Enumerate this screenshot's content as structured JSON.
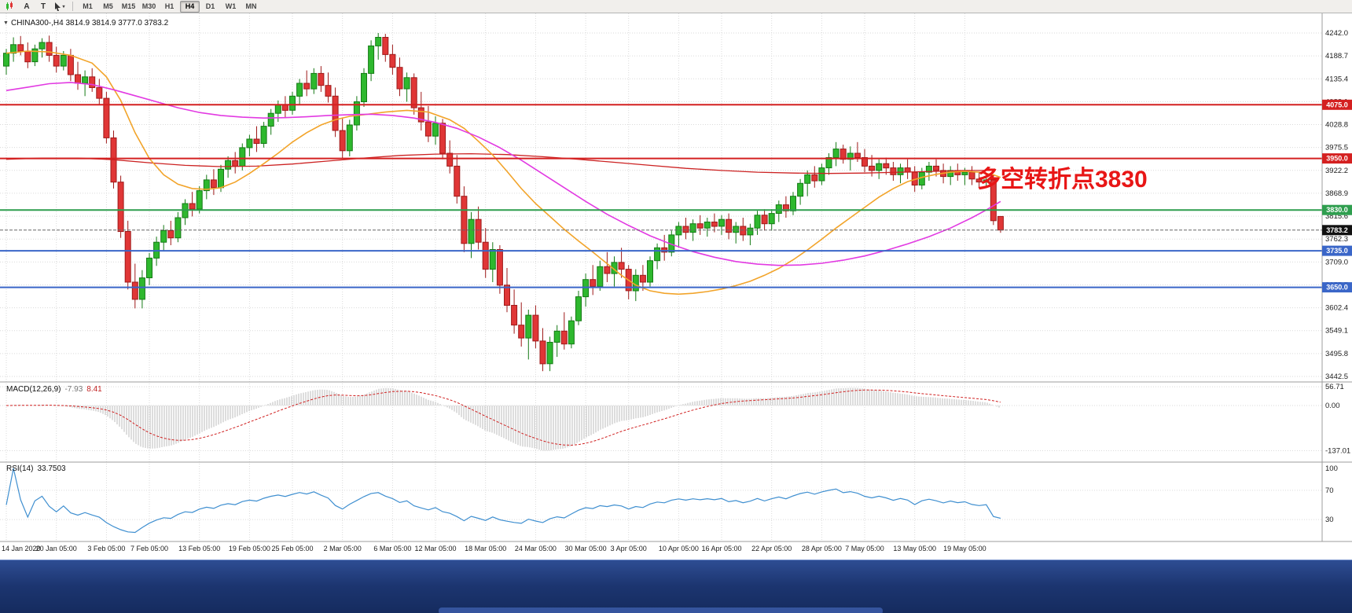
{
  "toolbar": {
    "a_label": "A",
    "t_label": "T",
    "timeframes": [
      "M1",
      "M5",
      "M15",
      "M30",
      "H1",
      "H4",
      "D1",
      "W1",
      "MN"
    ],
    "active_timeframe": "H4"
  },
  "header": {
    "symbol_line": "CHINA300-,H4 3814.9 3814.9 3777.0 3783.2"
  },
  "annotation": {
    "text": "多空转折点3830",
    "color": "#e81616"
  },
  "axis": {
    "price_labels": [
      "4242.0",
      "4188.7",
      "4135.4",
      "4082.1",
      "4028.8",
      "3975.5",
      "3922.2",
      "3868.9",
      "3815.6",
      "3762.3",
      "3709.0",
      "3655.7",
      "3602.4",
      "3549.1",
      "3495.8",
      "3442.5"
    ],
    "price_top": 4242.0,
    "price_bottom": 3442.5,
    "date_ticks": [
      {
        "i": 0,
        "label": "14 Jan 2020"
      },
      {
        "i": 7,
        "label": "20 Jan 05:00"
      },
      {
        "i": 14,
        "label": "3 Feb 05:00"
      },
      {
        "i": 20,
        "label": "7 Feb 05:00"
      },
      {
        "i": 27,
        "label": "13 Feb 05:00"
      },
      {
        "i": 34,
        "label": "19 Feb 05:00"
      },
      {
        "i": 40,
        "label": "25 Feb 05:00"
      },
      {
        "i": 47,
        "label": "2 Mar 05:00"
      },
      {
        "i": 54,
        "label": "6 Mar 05:00"
      },
      {
        "i": 60,
        "label": "12 Mar 05:00"
      },
      {
        "i": 67,
        "label": "18 Mar 05:00"
      },
      {
        "i": 74,
        "label": "24 Mar 05:00"
      },
      {
        "i": 81,
        "label": "30 Mar 05:00"
      },
      {
        "i": 87,
        "label": "3 Apr 05:00"
      },
      {
        "i": 94,
        "label": "10 Apr 05:00"
      },
      {
        "i": 100,
        "label": "16 Apr 05:00"
      },
      {
        "i": 107,
        "label": "22 Apr 05:00"
      },
      {
        "i": 114,
        "label": "28 Apr 05:00"
      },
      {
        "i": 120,
        "label": "7 May 05:00"
      },
      {
        "i": 127,
        "label": "13 May 05:00"
      },
      {
        "i": 134,
        "label": "19 May 05:00"
      }
    ]
  },
  "levels": [
    {
      "price": 4075.0,
      "label": "4075.0",
      "color": "#d42020"
    },
    {
      "price": 3950.0,
      "label": "3950.0",
      "color": "#d42020"
    },
    {
      "price": 3830.0,
      "label": "3830.0",
      "color": "#2f9e4f"
    },
    {
      "price": 3735.0,
      "label": "3735.0",
      "color": "#3a66c8"
    },
    {
      "price": 3650.0,
      "label": "3650.0",
      "color": "#3a66c8"
    }
  ],
  "current_price": {
    "value": 3783.2,
    "label": "3783.2"
  },
  "macd": {
    "title": "MACD(12,26,9)",
    "value_main": "-7.93",
    "value_signal": "8.41",
    "scale_labels": [
      {
        "v": 56.71,
        "t": "56.71"
      },
      {
        "v": 0,
        "t": "0.00"
      },
      {
        "v": -137.01,
        "t": "-137.01"
      }
    ]
  },
  "rsi": {
    "title": "RSI(14)",
    "value": "33.7503",
    "scale_labels": [
      {
        "v": 100,
        "t": "100"
      },
      {
        "v": 70,
        "t": "70"
      },
      {
        "v": 30,
        "t": "30"
      }
    ],
    "levels": [
      70,
      30
    ]
  },
  "colors": {
    "up_fill": "#2eb82e",
    "up_stroke": "#157a15",
    "down_fill": "#e03636",
    "down_stroke": "#9e1a1a",
    "ma_orange": "#f2a42a",
    "ma_magenta": "#e23ae2",
    "ma_red": "#cc2222",
    "macd_hist": "#bbbbbb",
    "macd_signal": "#d02020",
    "rsi_line": "#3f8fd0",
    "current_badge": "#111111"
  },
  "chart_data": {
    "type": "candlestick",
    "symbol": "CHINA300-",
    "timeframe": "H4",
    "ohlc": [
      [
        4165,
        4205,
        4145,
        4195
      ],
      [
        4195,
        4232,
        4175,
        4215
      ],
      [
        4215,
        4235,
        4190,
        4200
      ],
      [
        4200,
        4220,
        4160,
        4175
      ],
      [
        4175,
        4215,
        4165,
        4205
      ],
      [
        4205,
        4230,
        4185,
        4220
      ],
      [
        4220,
        4236,
        4175,
        4190
      ],
      [
        4190,
        4210,
        4150,
        4165
      ],
      [
        4165,
        4200,
        4155,
        4190
      ],
      [
        4190,
        4205,
        4130,
        4145
      ],
      [
        4145,
        4175,
        4110,
        4125
      ],
      [
        4125,
        4155,
        4095,
        4140
      ],
      [
        4140,
        4160,
        4105,
        4115
      ],
      [
        4115,
        4135,
        4075,
        4090
      ],
      [
        4090,
        4105,
        3985,
        3998
      ],
      [
        3998,
        4015,
        3880,
        3895
      ],
      [
        3895,
        3910,
        3765,
        3780
      ],
      [
        3780,
        3805,
        3645,
        3662
      ],
      [
        3662,
        3705,
        3601,
        3622
      ],
      [
        3622,
        3690,
        3601,
        3672
      ],
      [
        3672,
        3730,
        3655,
        3718
      ],
      [
        3718,
        3768,
        3700,
        3755
      ],
      [
        3755,
        3795,
        3735,
        3782
      ],
      [
        3782,
        3805,
        3748,
        3765
      ],
      [
        3765,
        3825,
        3755,
        3812
      ],
      [
        3812,
        3855,
        3795,
        3845
      ],
      [
        3845,
        3872,
        3815,
        3832
      ],
      [
        3832,
        3885,
        3822,
        3875
      ],
      [
        3875,
        3912,
        3855,
        3900
      ],
      [
        3900,
        3925,
        3865,
        3882
      ],
      [
        3882,
        3935,
        3872,
        3925
      ],
      [
        3925,
        3955,
        3905,
        3945
      ],
      [
        3945,
        3965,
        3915,
        3932
      ],
      [
        3932,
        3985,
        3922,
        3975
      ],
      [
        3975,
        4005,
        3955,
        3995
      ],
      [
        3995,
        4025,
        3965,
        3985
      ],
      [
        3985,
        4035,
        3975,
        4025
      ],
      [
        4025,
        4065,
        4005,
        4055
      ],
      [
        4055,
        4085,
        4035,
        4075
      ],
      [
        4075,
        4095,
        4045,
        4062
      ],
      [
        4062,
        4105,
        4052,
        4095
      ],
      [
        4095,
        4135,
        4075,
        4125
      ],
      [
        4125,
        4155,
        4095,
        4112
      ],
      [
        4112,
        4160,
        4100,
        4148
      ],
      [
        4148,
        4165,
        4105,
        4120
      ],
      [
        4120,
        4150,
        4080,
        4095
      ],
      [
        4095,
        4115,
        4000,
        4015
      ],
      [
        4015,
        4045,
        3950,
        3968
      ],
      [
        3968,
        4040,
        3955,
        4028
      ],
      [
        4028,
        4095,
        4015,
        4082
      ],
      [
        4082,
        4160,
        4070,
        4148
      ],
      [
        4148,
        4225,
        4130,
        4212
      ],
      [
        4212,
        4242,
        4180,
        4232
      ],
      [
        4232,
        4240,
        4175,
        4192
      ],
      [
        4192,
        4215,
        4145,
        4162
      ],
      [
        4162,
        4185,
        4095,
        4112
      ],
      [
        4112,
        4150,
        4082,
        4138
      ],
      [
        4138,
        4148,
        4052,
        4068
      ],
      [
        4068,
        4105,
        4015,
        4035
      ],
      [
        4035,
        4072,
        3988,
        4002
      ],
      [
        4002,
        4048,
        3982,
        4032
      ],
      [
        4032,
        4042,
        3948,
        3962
      ],
      [
        3962,
        3992,
        3915,
        3932
      ],
      [
        3932,
        3958,
        3845,
        3862
      ],
      [
        3862,
        3885,
        3732,
        3752
      ],
      [
        3752,
        3825,
        3718,
        3808
      ],
      [
        3808,
        3838,
        3738,
        3755
      ],
      [
        3755,
        3788,
        3672,
        3692
      ],
      [
        3692,
        3755,
        3662,
        3738
      ],
      [
        3738,
        3748,
        3635,
        3655
      ],
      [
        3655,
        3695,
        3592,
        3608
      ],
      [
        3608,
        3645,
        3542,
        3562
      ],
      [
        3562,
        3615,
        3512,
        3532
      ],
      [
        3532,
        3598,
        3482,
        3585
      ],
      [
        3585,
        3608,
        3508,
        3525
      ],
      [
        3525,
        3555,
        3455,
        3472
      ],
      [
        3472,
        3535,
        3455,
        3522
      ],
      [
        3522,
        3562,
        3488,
        3548
      ],
      [
        3548,
        3592,
        3505,
        3518
      ],
      [
        3518,
        3582,
        3508,
        3572
      ],
      [
        3572,
        3642,
        3562,
        3628
      ],
      [
        3628,
        3682,
        3605,
        3668
      ],
      [
        3668,
        3702,
        3632,
        3652
      ],
      [
        3652,
        3712,
        3642,
        3698
      ],
      [
        3698,
        3732,
        3662,
        3682
      ],
      [
        3682,
        3722,
        3652,
        3708
      ],
      [
        3708,
        3742,
        3672,
        3692
      ],
      [
        3692,
        3702,
        3622,
        3642
      ],
      [
        3642,
        3692,
        3618,
        3678
      ],
      [
        3678,
        3702,
        3642,
        3662
      ],
      [
        3662,
        3722,
        3652,
        3712
      ],
      [
        3712,
        3752,
        3692,
        3742
      ],
      [
        3742,
        3772,
        3712,
        3732
      ],
      [
        3732,
        3782,
        3722,
        3772
      ],
      [
        3772,
        3802,
        3742,
        3792
      ],
      [
        3792,
        3812,
        3762,
        3778
      ],
      [
        3778,
        3808,
        3758,
        3798
      ],
      [
        3798,
        3818,
        3772,
        3788
      ],
      [
        3788,
        3812,
        3768,
        3802
      ],
      [
        3802,
        3822,
        3778,
        3792
      ],
      [
        3792,
        3818,
        3772,
        3808
      ],
      [
        3808,
        3822,
        3762,
        3778
      ],
      [
        3778,
        3802,
        3752,
        3792
      ],
      [
        3792,
        3812,
        3758,
        3772
      ],
      [
        3772,
        3798,
        3748,
        3788
      ],
      [
        3788,
        3828,
        3772,
        3818
      ],
      [
        3818,
        3832,
        3782,
        3798
      ],
      [
        3798,
        3832,
        3782,
        3822
      ],
      [
        3822,
        3852,
        3802,
        3842
      ],
      [
        3842,
        3862,
        3812,
        3828
      ],
      [
        3828,
        3872,
        3818,
        3862
      ],
      [
        3862,
        3902,
        3842,
        3892
      ],
      [
        3892,
        3922,
        3862,
        3912
      ],
      [
        3912,
        3932,
        3882,
        3898
      ],
      [
        3898,
        3938,
        3888,
        3928
      ],
      [
        3928,
        3962,
        3912,
        3952
      ],
      [
        3952,
        3988,
        3932,
        3972
      ],
      [
        3972,
        3982,
        3938,
        3948
      ],
      [
        3948,
        3978,
        3922,
        3962
      ],
      [
        3962,
        3988,
        3942,
        3952
      ],
      [
        3952,
        3972,
        3918,
        3932
      ],
      [
        3932,
        3958,
        3908,
        3922
      ],
      [
        3922,
        3948,
        3902,
        3938
      ],
      [
        3938,
        3952,
        3912,
        3928
      ],
      [
        3928,
        3942,
        3898,
        3912
      ],
      [
        3912,
        3938,
        3892,
        3928
      ],
      [
        3928,
        3948,
        3902,
        3918
      ],
      [
        3918,
        3932,
        3872,
        3888
      ],
      [
        3888,
        3928,
        3878,
        3918
      ],
      [
        3918,
        3942,
        3898,
        3932
      ],
      [
        3932,
        3948,
        3908,
        3922
      ],
      [
        3922,
        3938,
        3892,
        3908
      ],
      [
        3908,
        3932,
        3888,
        3922
      ],
      [
        3922,
        3938,
        3898,
        3912
      ],
      [
        3912,
        3928,
        3888,
        3918
      ],
      [
        3918,
        3932,
        3888,
        3902
      ],
      [
        3902,
        3918,
        3882,
        3895
      ],
      [
        3895,
        3908,
        3885,
        3900
      ],
      [
        3900,
        3910,
        3795,
        3805
      ],
      [
        3814.9,
        3814.9,
        3777.0,
        3783.2
      ]
    ],
    "ma_orange": [
      [
        0,
        4195
      ],
      [
        3,
        4200
      ],
      [
        6,
        4198
      ],
      [
        9,
        4190
      ],
      [
        12,
        4172
      ],
      [
        14,
        4140
      ],
      [
        16,
        4085
      ],
      [
        18,
        4010
      ],
      [
        20,
        3950
      ],
      [
        22,
        3912
      ],
      [
        24,
        3890
      ],
      [
        26,
        3880
      ],
      [
        28,
        3878
      ],
      [
        30,
        3882
      ],
      [
        32,
        3895
      ],
      [
        34,
        3915
      ],
      [
        36,
        3938
      ],
      [
        38,
        3962
      ],
      [
        40,
        3988
      ],
      [
        42,
        4010
      ],
      [
        44,
        4028
      ],
      [
        46,
        4040
      ],
      [
        48,
        4048
      ],
      [
        50,
        4052
      ],
      [
        53,
        4058
      ],
      [
        56,
        4062
      ],
      [
        59,
        4058
      ],
      [
        62,
        4040
      ],
      [
        64,
        4020
      ],
      [
        66,
        3990
      ],
      [
        68,
        3958
      ],
      [
        70,
        3920
      ],
      [
        72,
        3880
      ],
      [
        74,
        3845
      ],
      [
        76,
        3815
      ],
      [
        78,
        3785
      ],
      [
        80,
        3758
      ],
      [
        82,
        3732
      ],
      [
        84,
        3705
      ],
      [
        86,
        3678
      ],
      [
        88,
        3655
      ],
      [
        90,
        3642
      ],
      [
        92,
        3636
      ],
      [
        94,
        3634
      ],
      [
        96,
        3636
      ],
      [
        98,
        3640
      ],
      [
        100,
        3646
      ],
      [
        102,
        3654
      ],
      [
        104,
        3664
      ],
      [
        106,
        3678
      ],
      [
        108,
        3694
      ],
      [
        110,
        3714
      ],
      [
        112,
        3737
      ],
      [
        114,
        3762
      ],
      [
        116,
        3788
      ],
      [
        118,
        3812
      ],
      [
        120,
        3836
      ],
      [
        122,
        3860
      ],
      [
        124,
        3880
      ],
      [
        126,
        3896
      ],
      [
        128,
        3906
      ],
      [
        130,
        3913
      ],
      [
        132,
        3918
      ],
      [
        134,
        3920
      ],
      [
        136,
        3918
      ],
      [
        138,
        3912
      ],
      [
        139,
        3906
      ]
    ],
    "ma_magenta": [
      [
        0,
        4108
      ],
      [
        3,
        4116
      ],
      [
        6,
        4124
      ],
      [
        9,
        4127
      ],
      [
        12,
        4122
      ],
      [
        15,
        4110
      ],
      [
        18,
        4096
      ],
      [
        21,
        4082
      ],
      [
        24,
        4068
      ],
      [
        27,
        4057
      ],
      [
        30,
        4050
      ],
      [
        33,
        4046
      ],
      [
        36,
        4044
      ],
      [
        39,
        4045
      ],
      [
        42,
        4047
      ],
      [
        45,
        4050
      ],
      [
        48,
        4052
      ],
      [
        51,
        4053
      ],
      [
        54,
        4050
      ],
      [
        57,
        4044
      ],
      [
        60,
        4034
      ],
      [
        63,
        4020
      ],
      [
        66,
        4000
      ],
      [
        69,
        3975
      ],
      [
        72,
        3946
      ],
      [
        75,
        3914
      ],
      [
        78,
        3882
      ],
      [
        81,
        3850
      ],
      [
        84,
        3820
      ],
      [
        87,
        3794
      ],
      [
        90,
        3770
      ],
      [
        93,
        3750
      ],
      [
        96,
        3733
      ],
      [
        99,
        3720
      ],
      [
        102,
        3710
      ],
      [
        105,
        3704
      ],
      [
        108,
        3701
      ],
      [
        111,
        3702
      ],
      [
        114,
        3706
      ],
      [
        117,
        3713
      ],
      [
        120,
        3723
      ],
      [
        123,
        3736
      ],
      [
        126,
        3751
      ],
      [
        129,
        3768
      ],
      [
        132,
        3788
      ],
      [
        135,
        3812
      ],
      [
        137,
        3830
      ],
      [
        139,
        3850
      ]
    ],
    "ma_red": [
      [
        0,
        3948
      ],
      [
        5,
        3951
      ],
      [
        10,
        3951
      ],
      [
        15,
        3947
      ],
      [
        20,
        3940
      ],
      [
        25,
        3934
      ],
      [
        30,
        3931
      ],
      [
        35,
        3932
      ],
      [
        40,
        3937
      ],
      [
        45,
        3944
      ],
      [
        50,
        3951
      ],
      [
        55,
        3957
      ],
      [
        60,
        3960
      ],
      [
        65,
        3961
      ],
      [
        70,
        3959
      ],
      [
        75,
        3954
      ],
      [
        80,
        3948
      ],
      [
        85,
        3941
      ],
      [
        90,
        3934
      ],
      [
        95,
        3927
      ],
      [
        100,
        3922
      ],
      [
        105,
        3918
      ],
      [
        110,
        3916
      ],
      [
        115,
        3915
      ],
      [
        120,
        3916
      ],
      [
        125,
        3918
      ],
      [
        130,
        3920
      ],
      [
        134,
        3922
      ],
      [
        137,
        3922
      ]
    ]
  }
}
